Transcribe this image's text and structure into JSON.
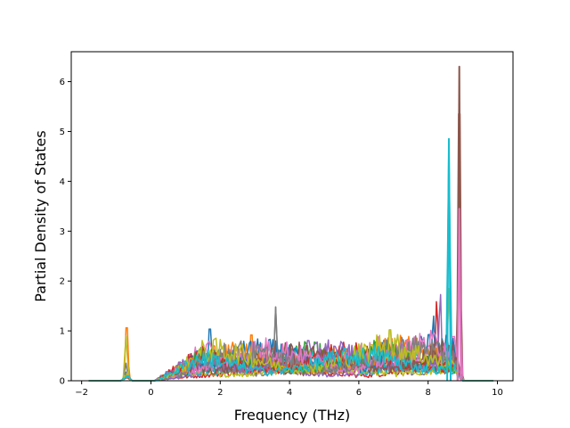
{
  "chart_data": {
    "type": "line",
    "title": "",
    "xlabel": "Frequency (THz)",
    "ylabel": "Partial Density of States",
    "xlim": [
      -2.3,
      10.45
    ],
    "ylim": [
      0,
      6.6
    ],
    "xticks": [
      -2,
      0,
      2,
      4,
      6,
      8,
      10
    ],
    "yticks": [
      0,
      1,
      2,
      3,
      4,
      5,
      6
    ],
    "xtick_labels": [
      "−2",
      "0",
      "2",
      "4",
      "6",
      "8",
      "10"
    ],
    "ytick_labels": [
      "0",
      "1",
      "2",
      "3",
      "4",
      "5",
      "6"
    ],
    "grid": false,
    "legend": "none",
    "x_range_of_data": [
      -1.8,
      9.9
    ],
    "series_count": 20,
    "palette": [
      "#1f77b4",
      "#ff7f0e",
      "#2ca02c",
      "#d62728",
      "#9467bd",
      "#8c564b",
      "#e377c2",
      "#7f7f7f",
      "#bcbd22",
      "#17becf"
    ],
    "notable_peaks": [
      {
        "x": -0.7,
        "y": 1.25,
        "color": "#ff7f0e"
      },
      {
        "x": -0.72,
        "y": 0.9,
        "color": "#bcbd22"
      },
      {
        "x": -0.72,
        "y": 0.35,
        "color": "#7f7f7f"
      },
      {
        "x": 1.7,
        "y": 1.22,
        "color": "#1f77b4"
      },
      {
        "x": 2.9,
        "y": 1.08,
        "color": "#ff7f0e"
      },
      {
        "x": 3.6,
        "y": 1.48,
        "color": "#7f7f7f"
      },
      {
        "x": 6.9,
        "y": 1.2,
        "color": "#bcbd22"
      },
      {
        "x": 8.15,
        "y": 1.35,
        "color": "#1f77b4"
      },
      {
        "x": 8.25,
        "y": 1.65,
        "color": "#d62728"
      },
      {
        "x": 8.35,
        "y": 1.8,
        "color": "#9467bd"
      },
      {
        "x": 8.6,
        "y": 4.85,
        "color": "#17becf"
      },
      {
        "x": 8.6,
        "y": 1.85,
        "color": "#bcbd22"
      },
      {
        "x": 8.9,
        "y": 6.3,
        "color": "#8c564b"
      },
      {
        "x": 8.9,
        "y": 3.45,
        "color": "#e377c2"
      }
    ]
  }
}
